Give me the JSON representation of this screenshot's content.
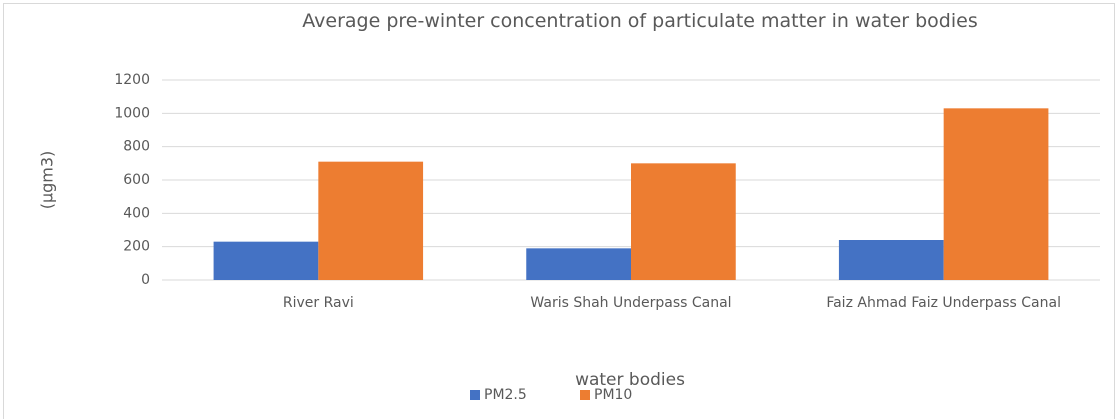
{
  "chart_data": {
    "type": "bar",
    "title": "Average pre-winter concentration of particulate matter in water bodies",
    "x_label": "water bodies",
    "y_label": "(µgm3)",
    "categories": [
      "River Ravi",
      "Waris Shah Underpass Canal",
      "Faiz Ahmad Faiz Underpass Canal"
    ],
    "series": [
      {
        "name": "PM2.5",
        "color": "#4472c4",
        "values": [
          230,
          190,
          240
        ]
      },
      {
        "name": "PM10",
        "color": "#ed7d31",
        "values": [
          710,
          700,
          1030
        ]
      }
    ],
    "ylim": [
      0,
      1200
    ],
    "yticks": [
      0,
      200,
      400,
      600,
      800,
      1000,
      1200
    ],
    "grid": true,
    "legend": "bottom"
  }
}
